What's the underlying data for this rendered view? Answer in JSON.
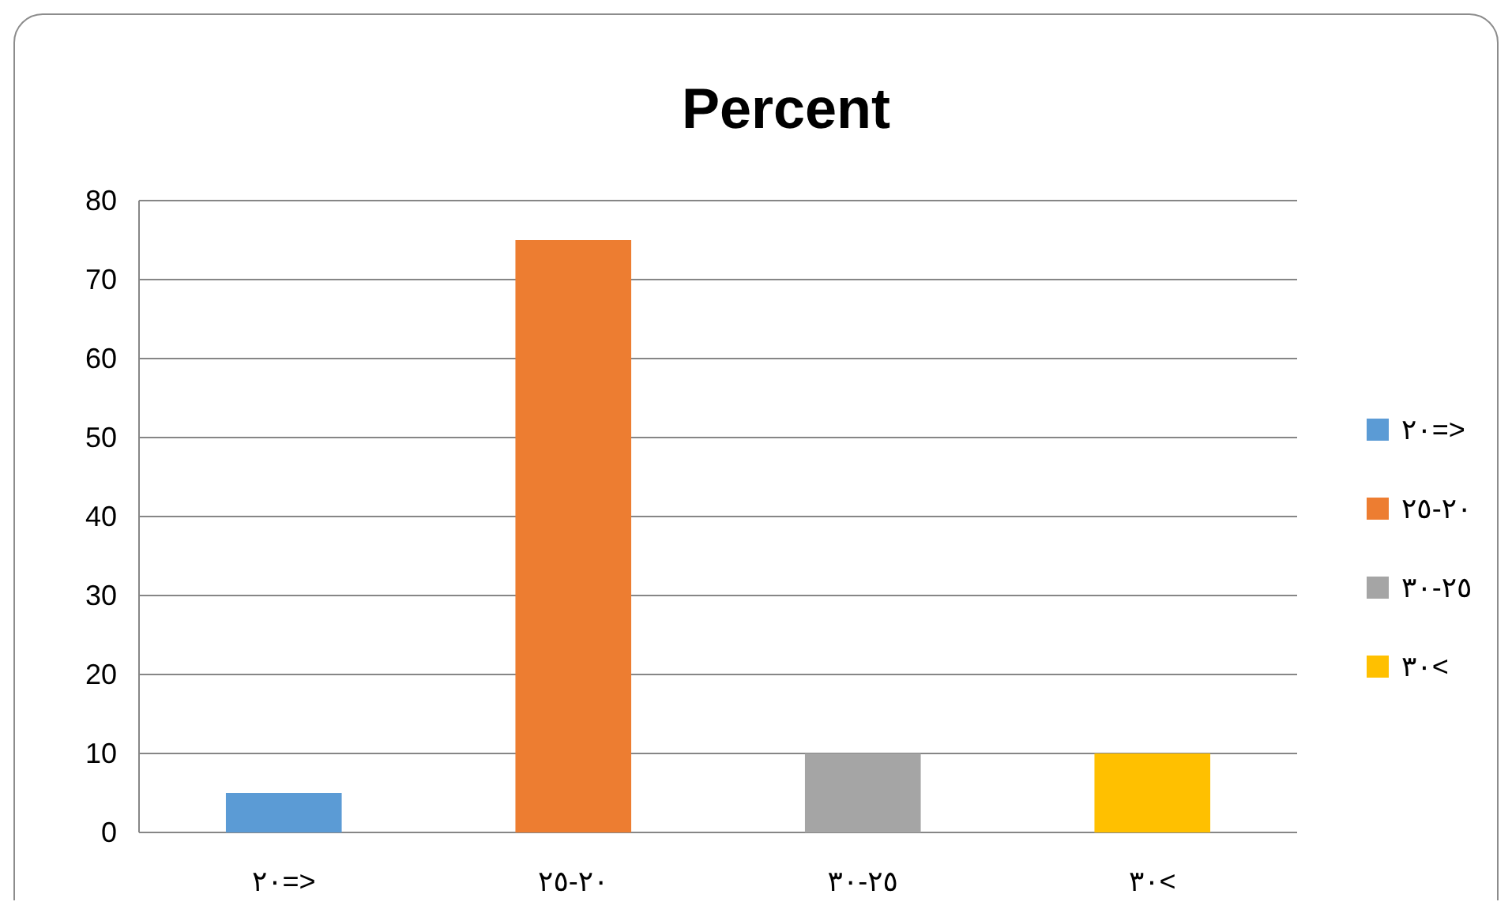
{
  "chart_data": {
    "type": "bar",
    "title": "Percent",
    "categories": [
      "٢٠=>",
      "٢٥-٢٠",
      "٣٠-٢٥",
      "٣٠<"
    ],
    "stacked": true,
    "series": [
      {
        "name": "٢٠=>",
        "color": "#5b9bd5",
        "values": [
          5,
          null,
          null,
          null
        ]
      },
      {
        "name": "٢٥-٢٠",
        "color": "#ed7d31",
        "values": [
          null,
          75,
          null,
          null
        ]
      },
      {
        "name": "٣٠-٢٥",
        "color": "#a5a5a5",
        "values": [
          null,
          null,
          10,
          null
        ]
      },
      {
        "name": "٣٠<",
        "color": "#ffc000",
        "values": [
          null,
          null,
          null,
          10
        ]
      }
    ],
    "ylim": [
      0,
      80
    ],
    "yticks": [
      0,
      10,
      20,
      30,
      40,
      50,
      60,
      70,
      80
    ],
    "grid": "y",
    "legend": "right"
  }
}
